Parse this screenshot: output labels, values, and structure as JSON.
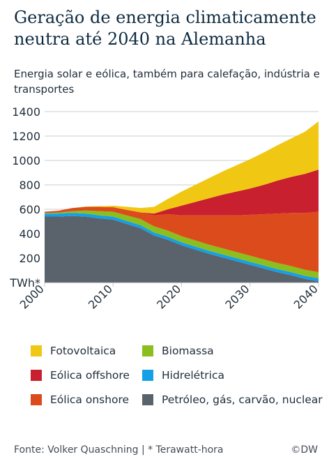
{
  "title": "Geração de energia climaticamente neutra até 2040 na Alemanha",
  "subtitle": "Energia solar e eólica, também para calefação, indústria e transportes",
  "colors": {
    "fotovoltaica": "#f0c814",
    "eolica_offshore": "#c8202f",
    "eolica_onshore": "#dc4b1c",
    "biomassa": "#8cbe1e",
    "hidreletrica": "#14a0e6",
    "fossil_nuclear": "#5a636c",
    "axis_text": "#1f2d3a",
    "grid": "#c8ccd0"
  },
  "chart_data": {
    "type": "area",
    "stacked": true,
    "ylabel": "TWh*",
    "ylim": [
      0,
      1400
    ],
    "yticks": [
      200,
      400,
      600,
      800,
      1000,
      1200,
      1400
    ],
    "xticks": [
      2000,
      2010,
      2020,
      2030,
      2040
    ],
    "xlim": [
      2000,
      2040
    ],
    "grid": true,
    "x": [
      2000,
      2002,
      2004,
      2006,
      2008,
      2010,
      2012,
      2014,
      2016,
      2018,
      2020,
      2022,
      2024,
      2026,
      2028,
      2030,
      2032,
      2034,
      2036,
      2038,
      2040
    ],
    "series": [
      {
        "name": "Petróleo, gás, carvão, nuclear",
        "color_key": "fossil_nuclear",
        "values": [
          540,
          540,
          545,
          540,
          525,
          515,
          480,
          445,
          385,
          350,
          305,
          270,
          235,
          205,
          175,
          145,
          115,
          85,
          60,
          30,
          10
        ]
      },
      {
        "name": "Hidrelétrica",
        "color_key": "hidreletrica",
        "values": [
          25,
          25,
          25,
          25,
          25,
          25,
          25,
          25,
          25,
          25,
          25,
          25,
          25,
          25,
          25,
          25,
          25,
          25,
          25,
          25,
          25
        ]
      },
      {
        "name": "Biomassa",
        "color_key": "biomassa",
        "values": [
          5,
          8,
          15,
          25,
          35,
          40,
          45,
          50,
          50,
          50,
          50,
          50,
          50,
          50,
          50,
          50,
          50,
          50,
          50,
          50,
          50
        ]
      },
      {
        "name": "Eólica onshore",
        "color_key": "eolica_onshore",
        "values": [
          10,
          15,
          25,
          30,
          35,
          37,
          45,
          55,
          90,
          135,
          170,
          205,
          240,
          270,
          300,
          335,
          370,
          405,
          435,
          465,
          495
        ]
      },
      {
        "name": "Eólica offshore",
        "color_key": "eolica_offshore",
        "values": [
          0,
          0,
          0,
          0,
          0,
          0,
          0,
          0,
          15,
          40,
          80,
          110,
          140,
          170,
          195,
          215,
          240,
          270,
          295,
          320,
          345
        ]
      },
      {
        "name": "Fotovoltaica",
        "color_key": "fotovoltaica",
        "values": [
          0,
          0,
          0,
          2,
          5,
          12,
          26,
          36,
          55,
          85,
          115,
          140,
          165,
          190,
          215,
          240,
          265,
          290,
          315,
          345,
          395
        ]
      }
    ]
  },
  "legend": [
    {
      "label": "Fotovoltaica",
      "color_key": "fotovoltaica"
    },
    {
      "label": "Biomassa",
      "color_key": "biomassa"
    },
    {
      "label": "Eólica offshore",
      "color_key": "eolica_offshore"
    },
    {
      "label": "Hidrelétrica",
      "color_key": "hidreletrica"
    },
    {
      "label": "Eólica onshore",
      "color_key": "eolica_onshore"
    },
    {
      "label": "Petróleo, gás, carvão, nuclear",
      "color_key": "fossil_nuclear"
    }
  ],
  "footer": {
    "source": "Fonte: Volker Quaschning  |  * Terawatt-hora",
    "brand": "©DW"
  }
}
